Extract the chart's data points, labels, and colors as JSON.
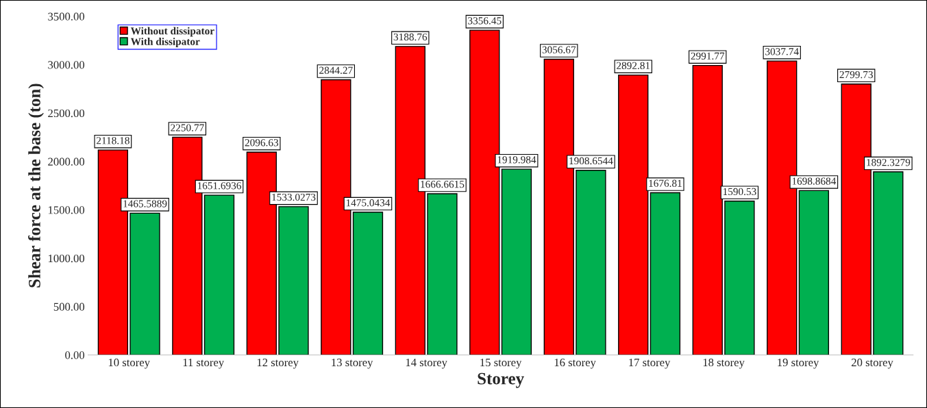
{
  "chart_data": {
    "type": "bar",
    "xlabel": "Storey",
    "ylabel": "Shear force at the base (ton)",
    "categories": [
      "10 storey",
      "11 storey",
      "12 storey",
      "13 storey",
      "14 storey",
      "15 storey",
      "16 storey",
      "17 storey",
      "18 storey",
      "19 storey",
      "20 storey"
    ],
    "series": [
      {
        "name": "Without dissipator",
        "color": "#ff0000",
        "values": [
          2118.18,
          2250.77,
          2096.63,
          2844.27,
          3188.76,
          3356.45,
          3056.67,
          2892.81,
          2991.77,
          3037.74,
          2799.73
        ]
      },
      {
        "name": "With dissipator",
        "color": "#00b050",
        "values": [
          1465.5889,
          1651.6936,
          1533.0273,
          1475.0434,
          1666.6615,
          1919.984,
          1908.6544,
          1676.81,
          1590.53,
          1698.8684,
          1892.3279
        ]
      }
    ],
    "ylim": [
      0,
      3500
    ],
    "yticks": [
      {
        "value": 0,
        "label": "0.00"
      },
      {
        "value": 500,
        "label": "500.00"
      },
      {
        "value": 1000,
        "label": "1000.00"
      },
      {
        "value": 1500,
        "label": "1500.00"
      },
      {
        "value": 2000,
        "label": "2000.00"
      },
      {
        "value": 2500,
        "label": "2500.00"
      },
      {
        "value": 3000,
        "label": "3000.00"
      },
      {
        "value": 3500,
        "label": "3500.00"
      }
    ],
    "data_labels": true,
    "legend": "top left",
    "grid": false
  }
}
